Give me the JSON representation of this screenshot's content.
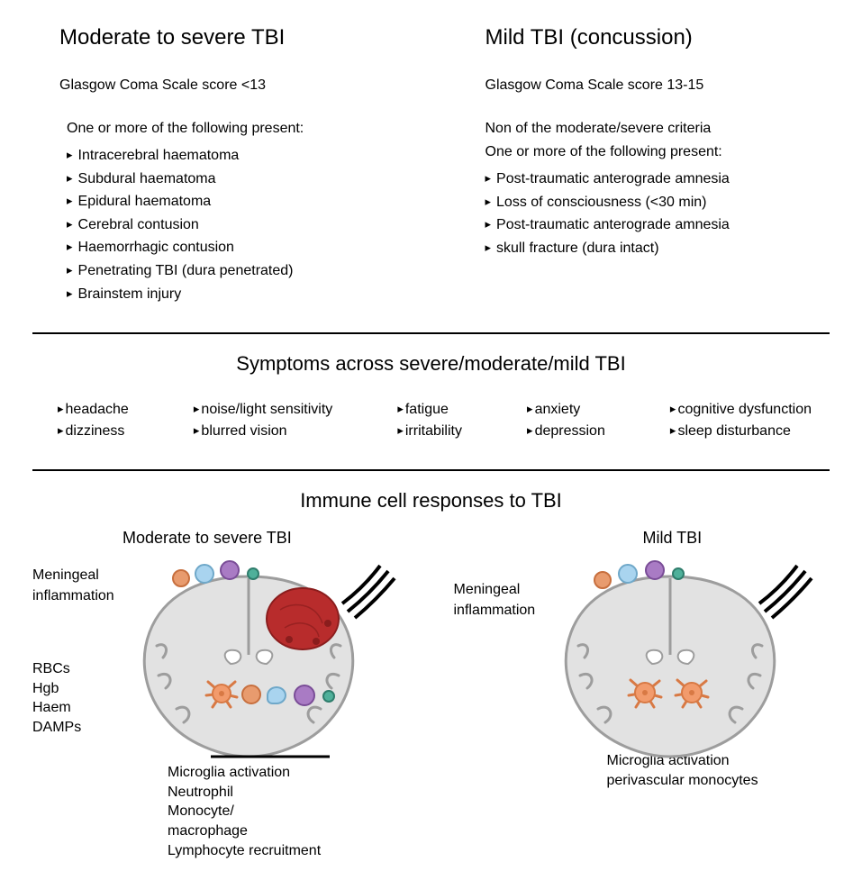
{
  "top": {
    "left": {
      "heading": "Moderate to severe TBI",
      "scale": "Glasgow Coma Scale score  <13",
      "intro": "One or more of the following present:",
      "items": [
        "Intracerebral haematoma",
        "Subdural haematoma",
        "Epidural haematoma",
        "Cerebral contusion",
        "Haemorrhagic contusion",
        "Penetrating TBI (dura penetrated)",
        "Brainstem injury"
      ]
    },
    "right": {
      "heading": "Mild TBI (concussion)",
      "scale": "Glasgow Coma Scale score  13-15",
      "intro1": "Non of the moderate/severe criteria",
      "intro2": "One or more of the following present:",
      "items": [
        "Post-traumatic anterograde amnesia",
        "Loss of consciousness (<30 min)",
        "Post-traumatic anterograde amnesia",
        "skull fracture (dura intact)"
      ]
    }
  },
  "symptoms": {
    "heading": "Symptoms across severe/moderate/mild TBI",
    "cols": [
      [
        "headache",
        "dizziness"
      ],
      [
        "noise/light sensitivity",
        "blurred vision"
      ],
      [
        "fatigue",
        "irritability"
      ],
      [
        "anxiety",
        "depression"
      ],
      [
        "cognitive dysfunction",
        "sleep disturbance"
      ]
    ]
  },
  "immune": {
    "heading": "Immune cell responses to TBI",
    "left": {
      "title": "Moderate to severe TBI",
      "meningeal": "Meningeal\ninflammation",
      "blood": [
        "RBCs",
        "Hgb",
        "Haem",
        "DAMPs"
      ],
      "below": [
        "Microglia activation",
        "Neutrophil",
        "Monocyte/",
        "macrophage",
        "Lymphocyte recruitment"
      ]
    },
    "right": {
      "title": "Mild TBI",
      "meningeal": "Meningeal\ninflammation",
      "below": [
        "Microglia activation",
        "perivascular monocytes"
      ]
    }
  },
  "colors": {
    "brain_fill": "#e2e2e2",
    "brain_stroke": "#9d9d9d",
    "microglia": "#f29b6c",
    "microglia_stroke": "#d87944",
    "neutrophil": "#a9d4ef",
    "neutrophil_stroke": "#6fa8c9",
    "monocyte": "#e89b6e",
    "monocyte_stroke": "#c76f3e",
    "lymphocyte": "#a97bc4",
    "lymphocyte_stroke": "#7a4d97",
    "tcell": "#4fb09a",
    "tcell_stroke": "#2f7d6c",
    "hematoma": "#b82c2c",
    "hematoma_stroke": "#8a1d1d"
  }
}
